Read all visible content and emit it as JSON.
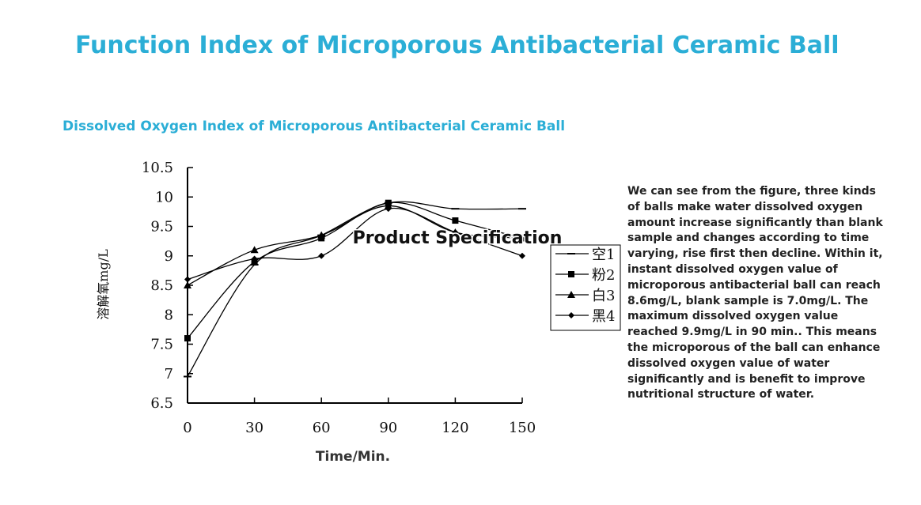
{
  "page": {
    "title": "Function Index of Microporous Antibacterial Ceramic Ball",
    "subtitle": "Dissolved Oxygen Index of Microporous Antibacterial Ceramic Ball",
    "overlay_text": "Product Specification",
    "description": "We can see from the figure, three kinds of balls make water dissolved oxygen amount increase significantly than blank sample and changes according to time varying, rise first then decline. Within it, instant dissolved oxygen value of microporous antibacterial ball can reach 8.6mg/L, blank sample is 7.0mg/L. The maximum dissolved oxygen value reached 9.9mg/L in 90 min.. This means the microporous of the ball can enhance dissolved oxygen value of water significantly and is benefit to improve nutritional structure of water."
  },
  "chart_data": {
    "type": "line",
    "xlabel": "Time/Min.",
    "ylabel": "溶解氧mg/L",
    "x": [
      0,
      30,
      60,
      90,
      120,
      150
    ],
    "x_tick_labels": [
      "0",
      "30",
      "60",
      "90",
      "120",
      "150"
    ],
    "y_tick_labels": [
      "10.5",
      "10",
      "9.5",
      "9",
      "8.5",
      "8",
      "7.5",
      "7",
      "6.5"
    ],
    "ylim": [
      6.5,
      10.5
    ],
    "xlim": [
      0,
      150
    ],
    "grid": false,
    "legend": "right",
    "series": [
      {
        "name": "空1",
        "marker": "dash",
        "values": [
          6.95,
          8.85,
          9.35,
          9.9,
          9.8,
          9.8
        ]
      },
      {
        "name": "粉2",
        "marker": "square",
        "values": [
          7.6,
          8.9,
          9.3,
          9.9,
          9.6,
          9.3
        ]
      },
      {
        "name": "白3",
        "marker": "triangle",
        "values": [
          8.5,
          9.1,
          9.35,
          9.85,
          9.4,
          9.3
        ]
      },
      {
        "name": "黑4",
        "marker": "diamond",
        "values": [
          8.6,
          8.95,
          9.0,
          9.8,
          9.4,
          9.0
        ]
      }
    ]
  }
}
